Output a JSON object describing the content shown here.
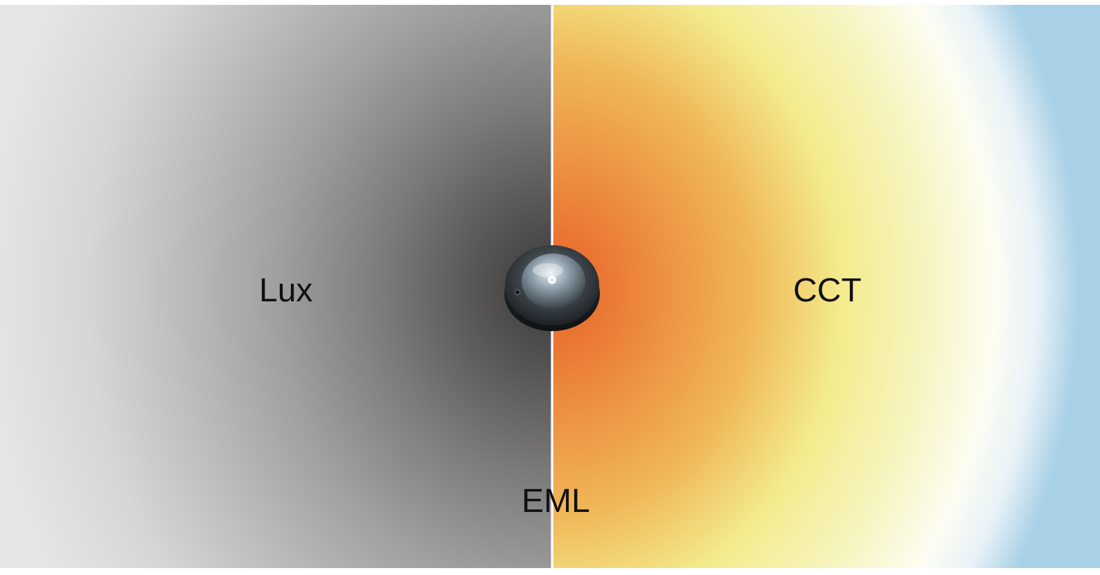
{
  "labels": {
    "lux": "Lux",
    "cct": "CCT",
    "eml": "EML"
  },
  "colors": {
    "lux_center": "#3a3838",
    "lux_edge": "#e6e6e6",
    "cct_warm": "#e8612a",
    "cct_mid": "#f3ec8e",
    "cct_cool": "#a8d0e6"
  },
  "icons": {
    "sensor": "light-sensor-icon"
  }
}
